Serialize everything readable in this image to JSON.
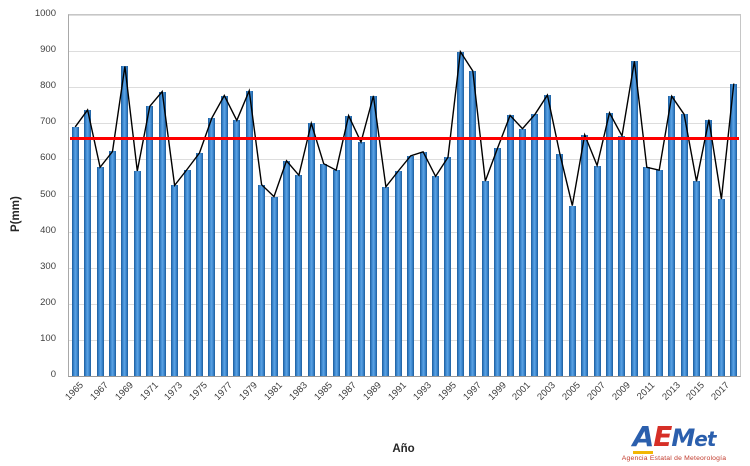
{
  "chart_data": {
    "type": "bar",
    "title": "",
    "xlabel": "Año",
    "ylabel": "P(mm)",
    "ylim": [
      0,
      1000
    ],
    "yticks": [
      0,
      100,
      200,
      300,
      400,
      500,
      600,
      700,
      800,
      900,
      1000
    ],
    "grid": "horizontal",
    "legend": "none",
    "categories": [
      1965,
      1966,
      1967,
      1968,
      1969,
      1970,
      1971,
      1972,
      1973,
      1974,
      1975,
      1976,
      1977,
      1978,
      1979,
      1980,
      1981,
      1982,
      1983,
      1984,
      1985,
      1986,
      1987,
      1988,
      1989,
      1990,
      1991,
      1992,
      1993,
      1994,
      1995,
      1996,
      1997,
      1998,
      1999,
      2000,
      2001,
      2002,
      2003,
      2004,
      2005,
      2006,
      2007,
      2008,
      2009,
      2010,
      2011,
      2012,
      2013,
      2014,
      2015,
      2016,
      2017,
      2018
    ],
    "values": [
      690,
      737,
      578,
      622,
      858,
      568,
      747,
      788,
      528,
      572,
      618,
      715,
      777,
      708,
      790,
      530,
      497,
      596,
      556,
      700,
      588,
      570,
      721,
      648,
      776,
      524,
      568,
      610,
      621,
      553,
      606,
      898,
      845,
      540,
      632,
      722,
      685,
      725,
      778,
      616,
      472,
      668,
      583,
      729,
      665,
      872,
      578,
      570,
      775,
      725,
      539,
      710,
      490,
      810
    ],
    "line_overlay": "black line connects the top of every bar (same values as bars)",
    "mean_line": 659,
    "xtick_labels": [
      "1965",
      "1967",
      "1969",
      "1971",
      "1973",
      "1975",
      "1977",
      "1979",
      "1981",
      "1983",
      "1985",
      "1987",
      "1989",
      "1991",
      "1993",
      "1995",
      "1997",
      "1999",
      "2001",
      "2003",
      "2005",
      "2007",
      "2009",
      "2011",
      "2013",
      "2015",
      "2017"
    ],
    "colors": {
      "bar": "#2E75B6",
      "bar_edge": "#1D5C9B",
      "line": "#000000",
      "mean": "#FF0000",
      "grid": "#DDDDDD",
      "tick_text": "#404040"
    }
  },
  "logo": {
    "letters": [
      {
        "ch": "A",
        "color": "#2b5fad",
        "accent": "#f2b705"
      },
      {
        "ch": "E",
        "color": "#d62f27"
      },
      {
        "ch": "M",
        "color": "#2b5fad"
      },
      {
        "ch": "e",
        "color": "#2b5fad"
      },
      {
        "ch": "t",
        "color": "#2b5fad"
      }
    ],
    "tagline": "Agencia Estatal de Meteorología",
    "tagline_color": "#c0392b"
  }
}
